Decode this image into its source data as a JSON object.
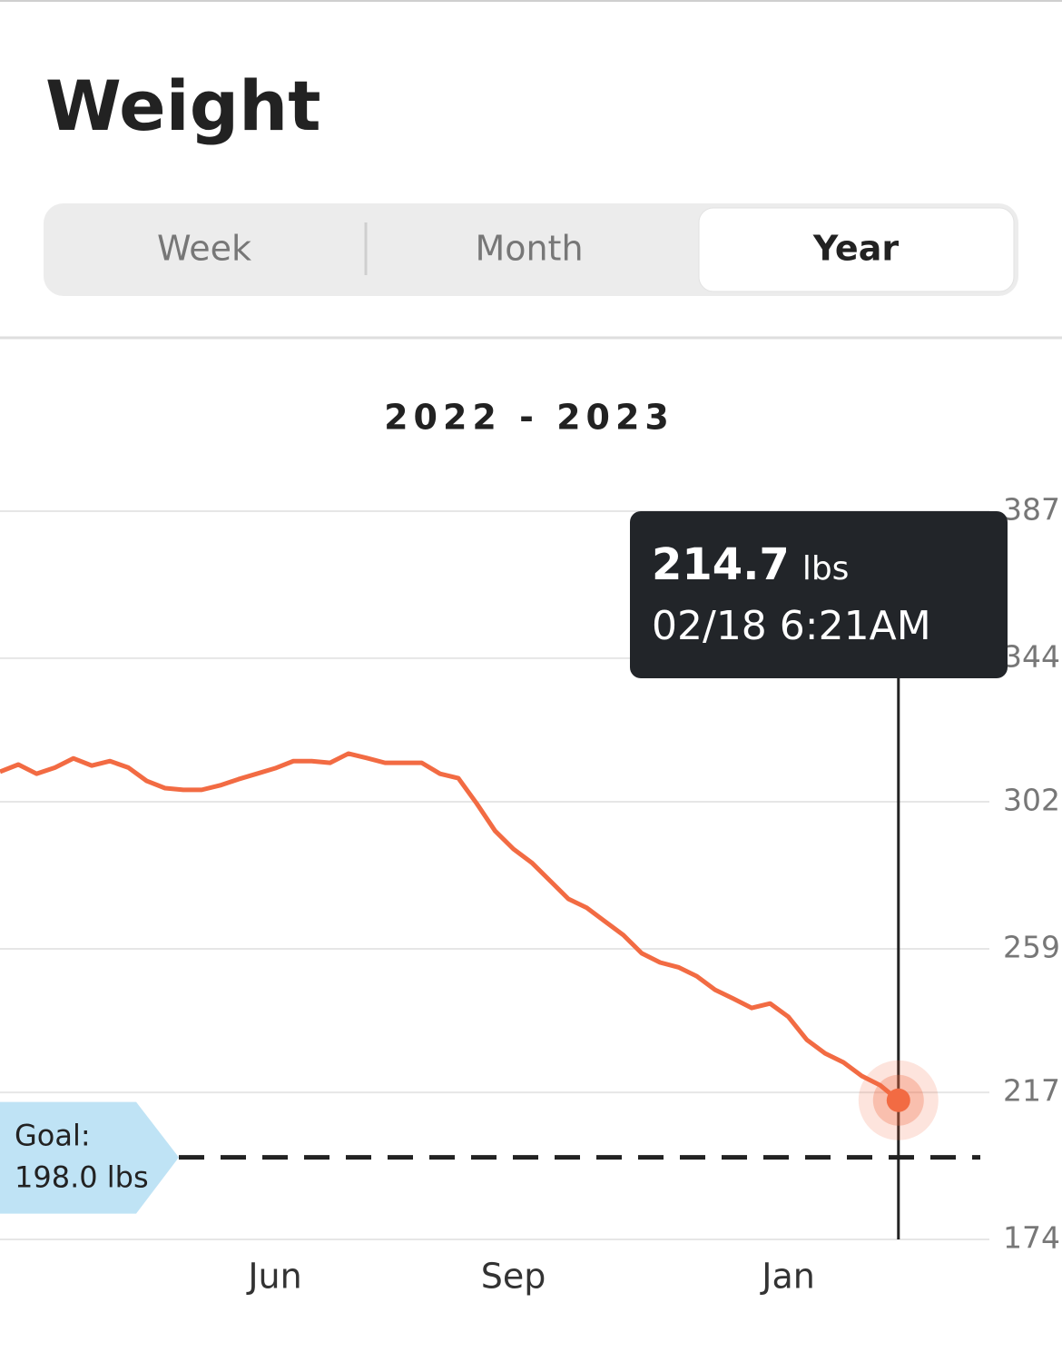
{
  "header": {
    "title": "Weight"
  },
  "tabs": {
    "items": [
      "Week",
      "Month",
      "Year"
    ],
    "selected": 2
  },
  "chart_data": {
    "type": "line",
    "subtitle": "2022 - 2023",
    "categories": [
      null,
      null,
      null,
      null,
      null,
      null,
      null,
      null,
      null,
      null,
      null,
      null,
      null,
      null,
      null,
      "Jun",
      null,
      null,
      null,
      null,
      null,
      null,
      null,
      null,
      null,
      null,
      null,
      null,
      "Sep",
      null,
      null,
      null,
      null,
      null,
      null,
      null,
      null,
      null,
      null,
      null,
      null,
      null,
      null,
      "Jan",
      null,
      null,
      null,
      null,
      null,
      null
    ],
    "values": [
      310.8,
      312.9,
      310.2,
      312,
      314.7,
      312.6,
      313.9,
      312,
      308.1,
      306,
      305.5,
      305.5,
      306.8,
      308.6,
      310.2,
      311.8,
      313.9,
      313.9,
      313.4,
      316.1,
      314.8,
      313.4,
      313.4,
      313.4,
      310.2,
      308.9,
      301.5,
      293.5,
      288.2,
      284.2,
      278.9,
      273.6,
      271,
      267,
      263,
      257.7,
      255,
      253.6,
      251,
      247,
      244.4,
      241.7,
      243,
      239.1,
      232.4,
      228.4,
      225.8,
      221.8,
      219.1,
      214.7
    ],
    "color": "#f26b43",
    "ylim": [
      174,
      387
    ],
    "yticks": [
      174,
      217,
      259,
      302,
      344,
      387
    ],
    "grid": true,
    "tooltip": {
      "index": 49,
      "unit": "lbs",
      "date": "02/18 6:21AM"
    },
    "goal": {
      "label": "Goal:",
      "value": 198,
      "value_label": "198.0 lbs"
    }
  }
}
